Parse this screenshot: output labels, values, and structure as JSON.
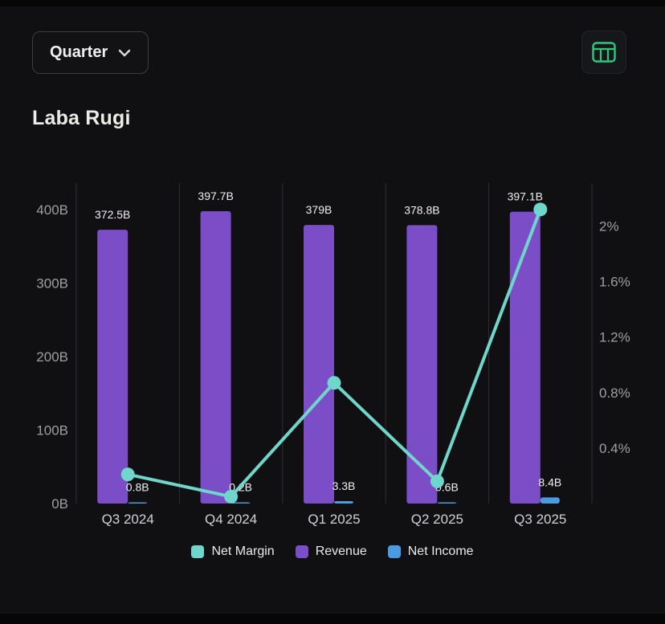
{
  "header": {
    "quarter_button": {
      "label": "Quarter"
    }
  },
  "title": "Laba Rugi",
  "chart_data": {
    "type": "combo",
    "title": "Laba Rugi",
    "categories": [
      "Q3 2024",
      "Q4 2024",
      "Q1 2025",
      "Q2 2025",
      "Q3 2025"
    ],
    "series": [
      {
        "name": "Revenue",
        "type": "bar",
        "axis": "left",
        "color": "#7b4ec8",
        "values": [
          372.5,
          397.7,
          379,
          378.8,
          397.1
        ],
        "labels": [
          "372.5B",
          "397.7B",
          "379B",
          "378.8B",
          "397.1B"
        ]
      },
      {
        "name": "Net Income",
        "type": "bar",
        "axis": "left",
        "color": "#4a9be0",
        "values": [
          0.8,
          0.2,
          3.3,
          0.6,
          8.4
        ],
        "labels": [
          "0.8B",
          "0.2B",
          "3.3B",
          "0.6B",
          "8.4B"
        ]
      },
      {
        "name": "Net Margin",
        "type": "line",
        "axis": "right",
        "color": "#6fd6cb",
        "values": [
          0.21,
          0.05,
          0.87,
          0.16,
          2.12
        ]
      }
    ],
    "left_axis": {
      "ticks": [
        "0B",
        "100B",
        "200B",
        "300B",
        "400B"
      ],
      "values": [
        0,
        100,
        200,
        300,
        400
      ],
      "max": 436
    },
    "right_axis": {
      "ticks": [
        "0.4%",
        "0.8%",
        "1.2%",
        "1.6%",
        "2%"
      ],
      "values": [
        0.4,
        0.8,
        1.2,
        1.6,
        2
      ],
      "max": 2.31
    },
    "legend": [
      {
        "label": "Net Margin",
        "color": "#6fd6cb"
      },
      {
        "label": "Revenue",
        "color": "#7b4ec8"
      },
      {
        "label": "Net Income",
        "color": "#4a9be0"
      }
    ],
    "grid": "vertical-only",
    "legend_position": "bottom"
  }
}
